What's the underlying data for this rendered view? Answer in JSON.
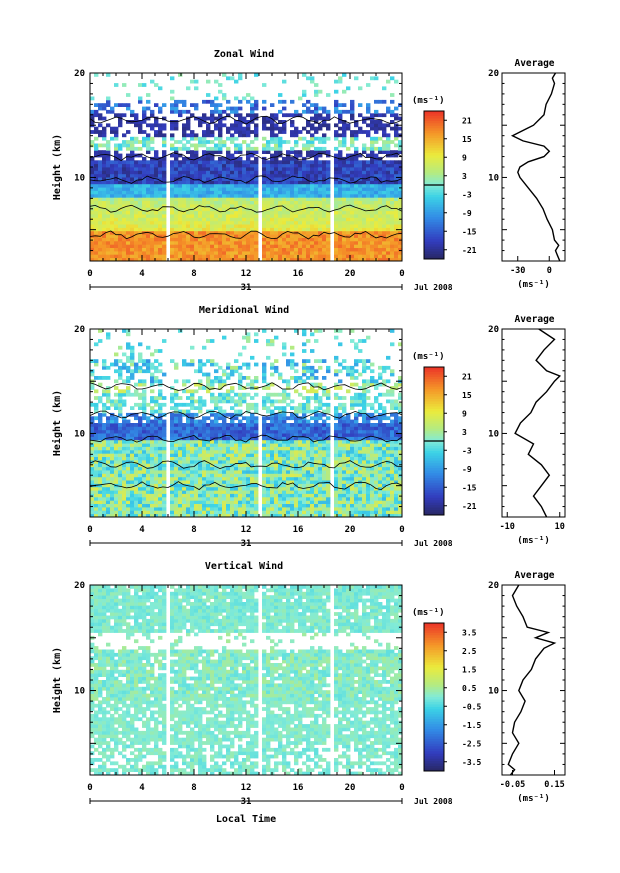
{
  "chart_data": [
    {
      "type": "heatmap",
      "title": "Zonal Wind",
      "ylabel": "Height (km)",
      "y_ticks": [
        "20",
        "10"
      ],
      "ylim": [
        2,
        20
      ],
      "x_ticks": [
        "0",
        "4",
        "8",
        "12",
        "16",
        "20",
        "0"
      ],
      "xlim": [
        0,
        24
      ],
      "date_day": "31",
      "date_month_year": "Jul 2008",
      "units": "(ms⁻¹)",
      "colorbar_ticks": [
        "21",
        "15",
        "9",
        "3",
        "-3",
        "-9",
        "-15",
        "-21"
      ],
      "colorbar_range": [
        -24,
        24
      ],
      "data_gaps_hours": [
        [
          5.7,
          6.0
        ],
        [
          12.8,
          13.2
        ],
        [
          18.4,
          18.8
        ]
      ],
      "profile": {
        "title": "Average",
        "xlabel": "(ms⁻¹)",
        "x_ticks": [
          "-30",
          "0"
        ],
        "x_tick_values": [
          -30,
          0
        ],
        "xlim": [
          -45,
          15
        ],
        "y": [
          2,
          2.5,
          3,
          3.5,
          4,
          5,
          6,
          7,
          8,
          9,
          10,
          10.5,
          11,
          11.5,
          12,
          12.5,
          13,
          13.5,
          14,
          15,
          16,
          17,
          18,
          19,
          19.5,
          20
        ],
        "x": [
          10,
          8,
          6,
          9,
          5,
          3,
          -2,
          -6,
          -12,
          -20,
          -28,
          -30,
          -28,
          -20,
          -5,
          0,
          -5,
          -25,
          -35,
          -15,
          -5,
          -3,
          2,
          5,
          3,
          6
        ]
      }
    },
    {
      "type": "heatmap",
      "title": "Meridional Wind",
      "ylabel": "Height (km)",
      "y_ticks": [
        "20",
        "10"
      ],
      "ylim": [
        2,
        20
      ],
      "x_ticks": [
        "0",
        "4",
        "8",
        "12",
        "16",
        "20",
        "0"
      ],
      "xlim": [
        0,
        24
      ],
      "date_day": "31",
      "date_month_year": "Jul 2008",
      "units": "(ms⁻¹)",
      "colorbar_ticks": [
        "21",
        "15",
        "9",
        "3",
        "-3",
        "-9",
        "-15",
        "-21"
      ],
      "colorbar_range": [
        -24,
        24
      ],
      "data_gaps_hours": [
        [
          5.7,
          6.0
        ],
        [
          12.8,
          13.2
        ],
        [
          18.4,
          18.8
        ]
      ],
      "profile": {
        "title": "Average",
        "xlabel": "(ms⁻¹)",
        "x_ticks": [
          "-10",
          "10"
        ],
        "x_tick_values": [
          -10,
          10
        ],
        "xlim": [
          -12,
          12
        ],
        "y": [
          2,
          3,
          4,
          5,
          6,
          7,
          8,
          9,
          10,
          11,
          12,
          13,
          14,
          15,
          15.5,
          16,
          17,
          18,
          19,
          20
        ],
        "x": [
          5,
          3,
          0,
          3,
          6,
          3,
          -2,
          0,
          -7,
          -5,
          -1,
          1,
          5,
          8,
          10,
          5,
          1,
          4,
          8,
          2
        ]
      }
    },
    {
      "type": "heatmap",
      "title": "Vertical Wind",
      "ylabel": "Height (km)",
      "xlabel": "Local Time",
      "y_ticks": [
        "20",
        "10"
      ],
      "ylim": [
        2,
        20
      ],
      "x_ticks": [
        "0",
        "4",
        "8",
        "12",
        "16",
        "20",
        "0"
      ],
      "xlim": [
        0,
        24
      ],
      "date_day": "31",
      "date_month_year": "Jul 2008",
      "units": "(ms⁻¹)",
      "colorbar_ticks": [
        "3.5",
        "2.5",
        "1.5",
        "0.5",
        "-0.5",
        "-1.5",
        "-2.5",
        "-3.5"
      ],
      "colorbar_range": [
        -4,
        4
      ],
      "data_gaps_hours": [
        [
          5.7,
          6.0
        ],
        [
          12.8,
          13.2
        ],
        [
          18.4,
          18.8
        ]
      ],
      "profile": {
        "title": "Average",
        "xlabel": "(ms⁻¹)",
        "x_ticks": [
          "-0.05",
          "0.15"
        ],
        "x_tick_values": [
          -0.05,
          0.15
        ],
        "xlim": [
          -0.1,
          0.2
        ],
        "y": [
          2,
          2.5,
          3,
          4,
          5,
          6,
          7,
          8,
          9,
          10,
          11,
          12,
          13,
          14,
          14.5,
          15,
          15.5,
          16,
          17,
          18,
          19,
          20
        ],
        "x": [
          -0.06,
          -0.04,
          -0.07,
          -0.05,
          -0.02,
          -0.05,
          -0.04,
          -0.01,
          0.01,
          -0.02,
          0.0,
          0.04,
          0.06,
          0.1,
          0.15,
          0.06,
          0.12,
          0.02,
          0.0,
          -0.03,
          -0.05,
          -0.02
        ]
      }
    }
  ]
}
